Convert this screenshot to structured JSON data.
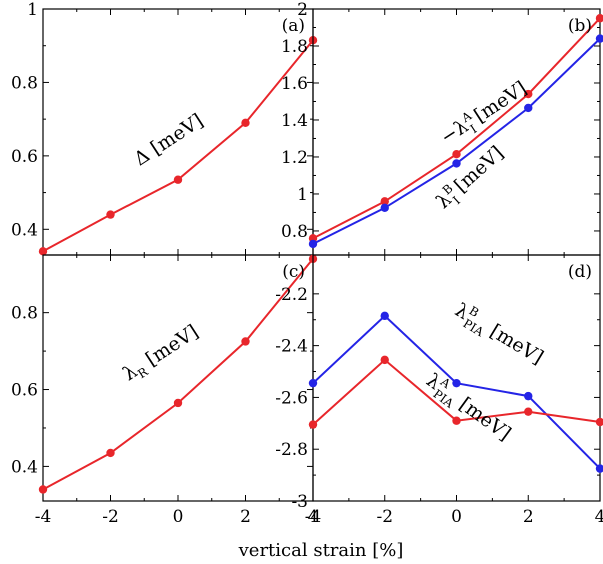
{
  "xlabel": "vertical strain [%]",
  "colors": {
    "red": "#e8262b",
    "blue": "#2424e6"
  },
  "chart_data": [
    {
      "panel_label": "(a)",
      "type": "line",
      "x": [
        -4,
        -2,
        0,
        2,
        4
      ],
      "xlim": [
        -4,
        4
      ],
      "ylim": [
        0.33,
        1.0
      ],
      "yticks": [
        "0.4",
        "0.6",
        "0.8",
        "1"
      ],
      "series": [
        {
          "color": "red",
          "values": [
            0.34,
            0.44,
            0.535,
            0.69,
            0.915
          ]
        }
      ],
      "annotations": [
        {
          "text": "Δ [meV]"
        }
      ]
    },
    {
      "panel_label": "(b)",
      "type": "line",
      "x": [
        -4,
        -2,
        0,
        2,
        4
      ],
      "xlim": [
        -4,
        4
      ],
      "ylim": [
        0.67,
        2.0
      ],
      "yticks": [
        "0.8",
        "1",
        "1.2",
        "1.4",
        "1.6",
        "1.8",
        "2"
      ],
      "series": [
        {
          "color": "red",
          "values": [
            0.76,
            0.96,
            1.215,
            1.54,
            1.95
          ]
        },
        {
          "color": "blue",
          "values": [
            0.73,
            0.925,
            1.165,
            1.465,
            1.84
          ]
        }
      ],
      "annotations": [
        {
          "text": "−λ",
          "sup": "A",
          "sub": "I",
          "tail": " [meV]"
        },
        {
          "text": "λ",
          "sup": "B",
          "sub": "I",
          "tail": " [meV]"
        }
      ]
    },
    {
      "panel_label": "(c)",
      "type": "line",
      "x": [
        -4,
        -2,
        0,
        2,
        4
      ],
      "xlim": [
        -4,
        4
      ],
      "ylim": [
        0.31,
        0.95
      ],
      "yticks": [
        "0.4",
        "0.6",
        "0.8"
      ],
      "series": [
        {
          "color": "red",
          "values": [
            0.34,
            0.435,
            0.565,
            0.725,
            0.94
          ]
        }
      ],
      "annotations": [
        {
          "text": "λ",
          "sub": "R",
          "tail": " [meV]"
        }
      ]
    },
    {
      "panel_label": "(d)",
      "type": "line",
      "x": [
        -4,
        -2,
        0,
        2,
        4
      ],
      "xlim": [
        -4,
        4
      ],
      "ylim": [
        -3.0,
        -2.05
      ],
      "yticks": [
        "-3",
        "-2.8",
        "-2.6",
        "-2.4",
        "-2.2"
      ],
      "series": [
        {
          "color": "blue",
          "values": [
            -2.545,
            -2.285,
            -2.545,
            -2.595,
            -2.875
          ]
        },
        {
          "color": "red",
          "values": [
            -2.705,
            -2.455,
            -2.69,
            -2.655,
            -2.695
          ]
        }
      ],
      "annotations": [
        {
          "text": "λ",
          "sup": "B",
          "sub": "PIA",
          "tail": " [meV]"
        },
        {
          "text": "λ",
          "sup": "A",
          "sub": "PIA",
          "tail": " [meV]"
        }
      ]
    }
  ],
  "xticks": [
    "-4",
    "-2",
    "0",
    "2",
    "4"
  ]
}
